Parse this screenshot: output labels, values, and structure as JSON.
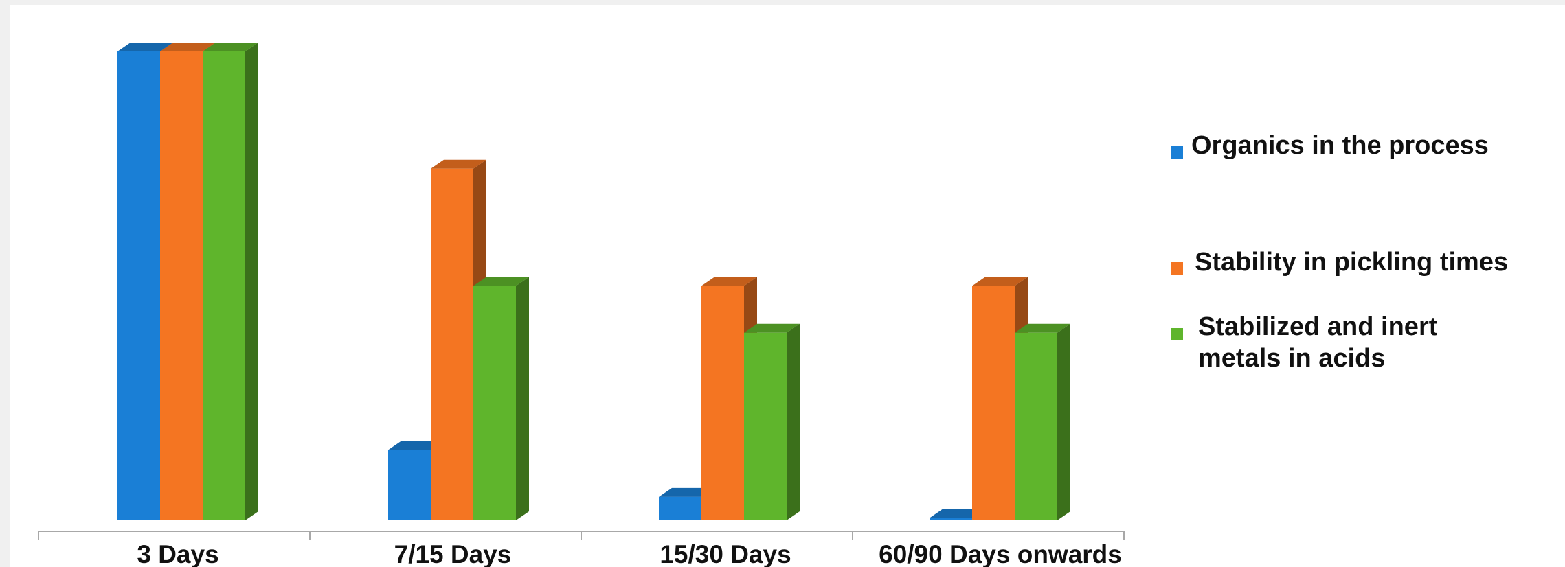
{
  "chart_data": {
    "type": "bar",
    "categories": [
      "3 Days",
      "7/15 Days",
      "15/30 Days",
      "60/90 Days onwards"
    ],
    "series": [
      {
        "name": "Organics in the process",
        "color": "#1a7fd6",
        "values": [
          100,
          15,
          5,
          0.5
        ]
      },
      {
        "name": "Stability in pickling times",
        "color": "#f47522",
        "values": [
          100,
          75,
          50,
          50
        ]
      },
      {
        "name": "Stabilized and inert metals in acids",
        "color": "#5fb52c",
        "values": [
          100,
          50,
          40,
          40
        ]
      }
    ],
    "title": "",
    "xlabel": "",
    "ylabel": "",
    "ylim": [
      0,
      100
    ],
    "grid": false,
    "legend": "right",
    "style": "3d-column"
  },
  "legend": {
    "items": [
      {
        "lines": [
          "Organics in the process"
        ]
      },
      {
        "lines": [
          "Stability in pickling times"
        ]
      },
      {
        "lines": [
          "Stabilized and inert",
          "metals in acids"
        ]
      }
    ]
  }
}
